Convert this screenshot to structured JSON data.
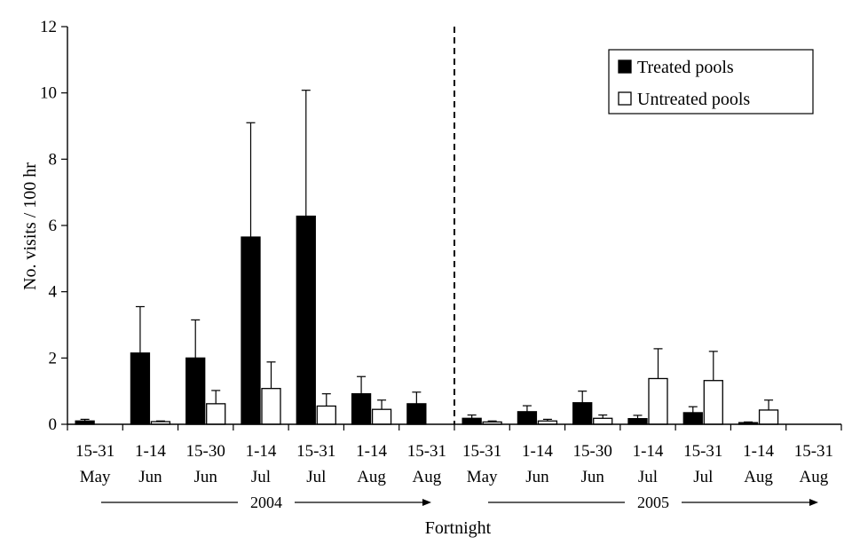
{
  "chart_data": {
    "type": "bar",
    "xlabel": "Fortnight",
    "ylabel": "No. visits / 100 hr",
    "ylim": [
      0,
      12
    ],
    "yticks": [
      0,
      2,
      4,
      6,
      8,
      10,
      12
    ],
    "categories": [
      [
        "15-31",
        "May"
      ],
      [
        "1-14",
        "Jun"
      ],
      [
        "15-30",
        "Jun"
      ],
      [
        "1-14",
        "Jul"
      ],
      [
        "15-31",
        "Jul"
      ],
      [
        "1-14",
        "Aug"
      ],
      [
        "15-31",
        "Aug"
      ],
      [
        "15-31",
        "May"
      ],
      [
        "1-14",
        "Jun"
      ],
      [
        "15-30",
        "Jun"
      ],
      [
        "1-14",
        "Jul"
      ],
      [
        "15-31",
        "Jul"
      ],
      [
        "1-14",
        "Aug"
      ],
      [
        "15-31",
        "Aug"
      ]
    ],
    "groups": [
      {
        "label": "2004",
        "start": 0,
        "end": 6
      },
      {
        "label": "2005",
        "start": 7,
        "end": 13
      }
    ],
    "series": [
      {
        "name": "Treated pools",
        "color": "#000000",
        "values": [
          0.1,
          2.15,
          2.0,
          5.65,
          6.28,
          0.92,
          0.62,
          0.18,
          0.38,
          0.65,
          0.17,
          0.35,
          0.05,
          0.0
        ],
        "errors": [
          0.05,
          1.4,
          1.15,
          3.45,
          3.8,
          0.52,
          0.35,
          0.1,
          0.18,
          0.35,
          0.1,
          0.18,
          0.02,
          0.0
        ]
      },
      {
        "name": "Untreated pools",
        "color": "#ffffff",
        "values": [
          0.0,
          0.08,
          0.62,
          1.08,
          0.55,
          0.45,
          0.0,
          0.07,
          0.1,
          0.18,
          1.38,
          1.32,
          0.43,
          0.0
        ],
        "errors": [
          0.0,
          0.02,
          0.4,
          0.8,
          0.37,
          0.28,
          0.0,
          0.03,
          0.05,
          0.1,
          0.9,
          0.88,
          0.3,
          0.0
        ]
      }
    ],
    "divider_after_index": 6,
    "legend_position": "top-right",
    "grid": false
  }
}
